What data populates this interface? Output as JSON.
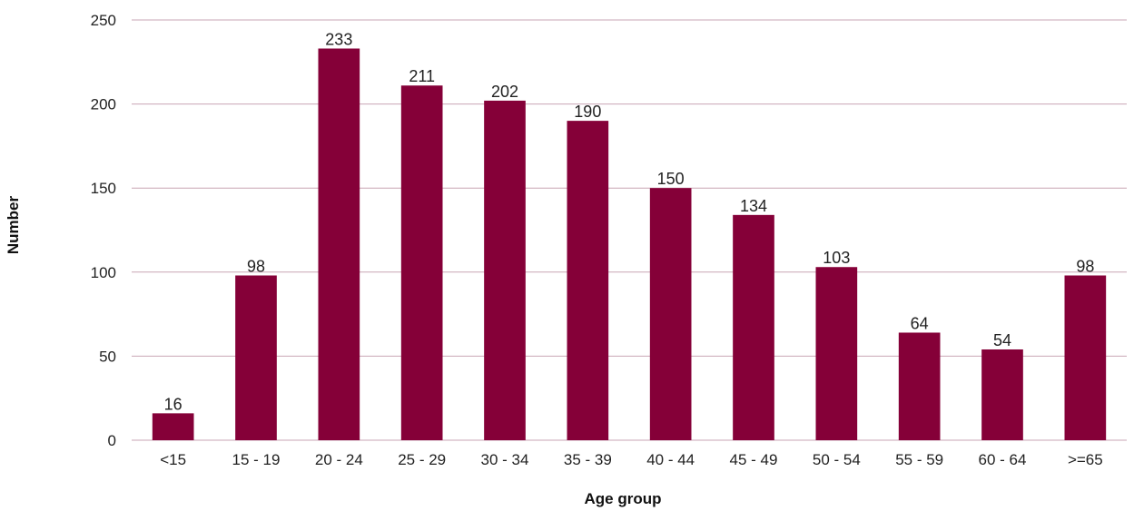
{
  "chart_data": {
    "type": "bar",
    "title": "",
    "xlabel": "Age group",
    "ylabel": "Number",
    "categories": [
      "<15",
      "15 - 19",
      "20 - 24",
      "25 - 29",
      "30 - 34",
      "35 - 39",
      "40 - 44",
      "45 - 49",
      "50 - 54",
      "55 - 59",
      "60 - 64",
      ">=65"
    ],
    "values": [
      16,
      98,
      233,
      211,
      202,
      190,
      150,
      134,
      103,
      64,
      54,
      98
    ],
    "data_labels": [
      "16",
      "98",
      "233",
      "211",
      "202",
      "190",
      "150",
      "134",
      "103",
      "64",
      "54",
      "98"
    ],
    "ylim": [
      0,
      250
    ],
    "yticks": [
      0,
      50,
      100,
      150,
      200,
      250
    ],
    "ytick_labels": [
      "0",
      "50",
      "100",
      "150",
      "200",
      "250"
    ],
    "grid": true,
    "legend": "none",
    "colors": {
      "bar": "#850038",
      "grid": "#c9a6b4",
      "text": "#222222"
    }
  }
}
